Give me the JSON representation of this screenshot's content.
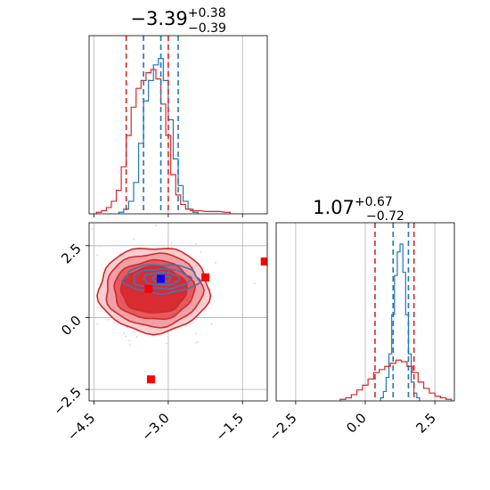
{
  "colors": {
    "blue": "#1f77b4",
    "red": "#d62728",
    "marker_red": "#ff0000",
    "marker_blue": "#0000ff"
  },
  "chart_data": [
    {
      "type": "histogram",
      "panel": "x-marginal",
      "title_main": "−3.39",
      "title_sup": "+0.38",
      "title_sub": "−0.39",
      "xlim": [
        -4.6,
        -1.0
      ],
      "grid": true,
      "series": [
        {
          "color": "blue",
          "quantiles": [
            -3.5,
            -3.15,
            -2.8
          ],
          "x": [
            -3.95,
            -3.85,
            -3.75,
            -3.65,
            -3.55,
            -3.45,
            -3.35,
            -3.25,
            -3.15,
            -3.05,
            -2.95,
            -2.85,
            -2.75,
            -2.65,
            -2.55,
            -2.45
          ],
          "density": [
            0.01,
            0.03,
            0.08,
            0.2,
            0.45,
            0.72,
            0.85,
            0.95,
            0.99,
            0.85,
            0.6,
            0.35,
            0.18,
            0.08,
            0.03,
            0.01
          ]
        },
        {
          "color": "red",
          "quantiles": [
            -3.85,
            -3.0
          ],
          "x": [
            -4.4,
            -4.3,
            -4.2,
            -4.1,
            -4.0,
            -3.9,
            -3.8,
            -3.7,
            -3.6,
            -3.5,
            -3.4,
            -3.3,
            -3.2,
            -3.1,
            -3.0,
            -2.9,
            -2.8,
            -2.7,
            -2.6,
            -2.5,
            -2.4,
            -2.2,
            -2.0,
            -1.8
          ],
          "density": [
            0.01,
            0.02,
            0.04,
            0.08,
            0.15,
            0.3,
            0.5,
            0.68,
            0.8,
            0.85,
            0.9,
            0.92,
            0.86,
            0.7,
            0.5,
            0.25,
            0.12,
            0.06,
            0.03,
            0.02,
            0.02,
            0.015,
            0.015,
            0.01
          ]
        }
      ]
    },
    {
      "type": "scatter",
      "panel": "joint",
      "xlim": [
        -4.6,
        -1.0
      ],
      "ylim": [
        -2.9,
        3.3
      ],
      "x_ticks": [
        -4.5,
        -3.0,
        -1.5
      ],
      "x_tick_labels": [
        "−4.5",
        "−3.0",
        "−1.5"
      ],
      "y_ticks": [
        -2.5,
        0.0,
        2.5
      ],
      "y_tick_labels": [
        "−2.5",
        "0.0",
        "2.5"
      ],
      "grid": true,
      "red_contour_center": [
        -3.4,
        0.9
      ],
      "blue_contour_center": [
        -3.1,
        1.35
      ],
      "markers": [
        {
          "x": -3.4,
          "y": 1.0,
          "color": "marker_red"
        },
        {
          "x": -2.25,
          "y": 1.4,
          "color": "marker_red"
        },
        {
          "x": -1.05,
          "y": 1.95,
          "color": "marker_red"
        },
        {
          "x": -3.35,
          "y": -2.15,
          "color": "marker_red"
        },
        {
          "x": -3.15,
          "y": 1.35,
          "color": "marker_blue"
        }
      ]
    },
    {
      "type": "histogram",
      "panel": "y-marginal",
      "title_main": "1.07",
      "title_sup": "+0.67",
      "title_sub": "−0.72",
      "xlim": [
        -3.2,
        3.2
      ],
      "x_ticks": [
        -2.5,
        0.0,
        2.5
      ],
      "x_tick_labels": [
        "−2.5",
        "0.0",
        "2.5"
      ],
      "grid": true,
      "series": [
        {
          "color": "blue",
          "quantiles": [
            1.0,
            1.55
          ],
          "x": [
            0.6,
            0.7,
            0.8,
            0.9,
            1.0,
            1.1,
            1.2,
            1.3,
            1.4,
            1.5,
            1.6,
            1.7,
            1.8,
            1.9
          ],
          "density": [
            0.02,
            0.06,
            0.15,
            0.3,
            0.55,
            0.8,
            0.95,
            1.0,
            0.82,
            0.55,
            0.3,
            0.12,
            0.05,
            0.02
          ]
        },
        {
          "color": "red",
          "quantiles": [
            0.35,
            1.75
          ],
          "x": [
            -0.8,
            -0.6,
            -0.4,
            -0.2,
            0.0,
            0.2,
            0.4,
            0.6,
            0.8,
            1.0,
            1.2,
            1.4,
            1.6,
            1.8,
            2.0,
            2.2,
            2.4,
            2.6,
            2.8,
            3.0
          ],
          "density": [
            0.01,
            0.02,
            0.04,
            0.07,
            0.1,
            0.14,
            0.18,
            0.2,
            0.22,
            0.24,
            0.26,
            0.25,
            0.22,
            0.18,
            0.12,
            0.08,
            0.05,
            0.03,
            0.02,
            0.01
          ]
        }
      ]
    }
  ]
}
